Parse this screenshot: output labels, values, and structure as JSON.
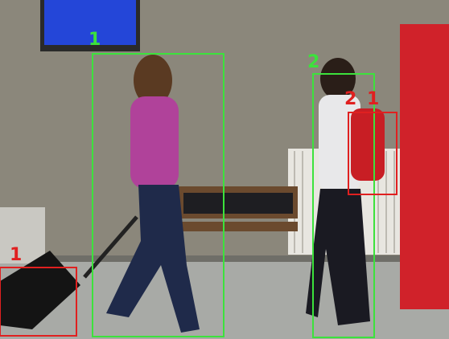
{
  "detections": [
    {
      "label": "1",
      "color": "#3ce23c"
    },
    {
      "label": "2",
      "color": "#3ce23c"
    },
    {
      "label": "2",
      "color": "#e02020"
    },
    {
      "label": "1",
      "color": "#e02020"
    },
    {
      "label": "1",
      "color": "#e02020"
    }
  ]
}
